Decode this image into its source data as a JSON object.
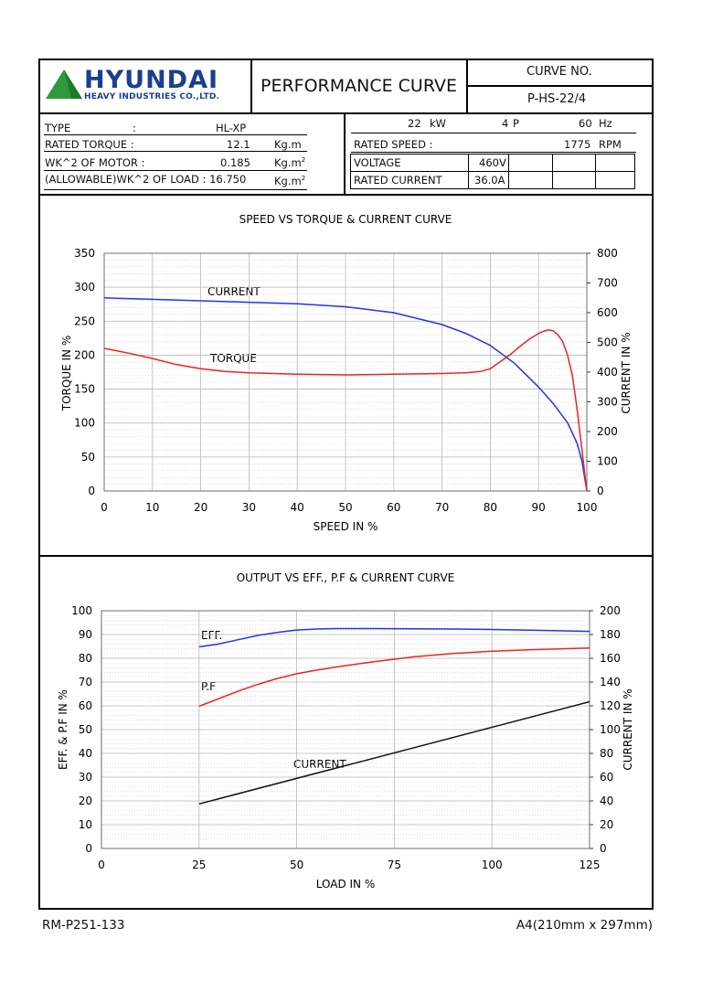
{
  "header": {
    "company_name": "HYUNDAI",
    "company_sub": "HEAVY INDUSTRIES CO.,LTD.",
    "doc_title": "PERFORMANCE CURVE",
    "curve_no_label": "CURVE NO.",
    "curve_no": "P-HS-22/4"
  },
  "specs": {
    "type_label": "TYPE",
    "type_colon": ":",
    "type_value": "HL-XP",
    "rated_torque_label": "RATED TORQUE :",
    "rated_torque_value": "12.1",
    "rated_torque_unit": "Kg.m",
    "wk2_motor_label": "WK^2 OF MOTOR :",
    "wk2_motor_value": "0.185",
    "wk2_motor_unit": "Kg.m",
    "wk2_load_label": "(ALLOWABLE)WK^2 OF LOAD : 16.750",
    "wk2_load_unit": "Kg.m",
    "unit_sup": "2",
    "power_value": "22",
    "power_unit": "kW",
    "poles_value": "4",
    "poles_unit": "P",
    "freq_value": "60",
    "freq_unit": "Hz",
    "rated_speed_label": "RATED SPEED :",
    "rated_speed_value": "1775",
    "rated_speed_unit": "RPM",
    "voltage_label": "VOLTAGE",
    "voltage_value": "460V",
    "rated_current_label": "RATED CURRENT",
    "rated_current_value": "36.0A"
  },
  "chart_data": [
    {
      "type": "line",
      "title": "SPEED VS TORQUE & CURRENT CURVE",
      "xlabel": "SPEED IN %",
      "ylabel": "TORQUE IN %",
      "y2label": "CURRENT IN %",
      "xlim": [
        0,
        100
      ],
      "ylim": [
        0,
        350
      ],
      "y2lim": [
        0,
        800
      ],
      "xticks": [
        "0",
        "10",
        "20",
        "30",
        "40",
        "50",
        "60",
        "70",
        "80",
        "90",
        "100"
      ],
      "yticks": [
        "0",
        "50",
        "100",
        "150",
        "200",
        "250",
        "300",
        "350"
      ],
      "y2ticks": [
        "0",
        "100",
        "200",
        "300",
        "400",
        "500",
        "600",
        "700",
        "800"
      ],
      "grid": true,
      "series": [
        {
          "name": "CURRENT",
          "axis": "right",
          "color": "#2233ee",
          "x": [
            0,
            10,
            20,
            30,
            40,
            50,
            60,
            65,
            70,
            75,
            80,
            85,
            90,
            93,
            96,
            98,
            99,
            100
          ],
          "y": [
            650,
            645,
            640,
            635,
            630,
            620,
            600,
            580,
            560,
            530,
            490,
            430,
            350,
            295,
            230,
            160,
            100,
            0
          ]
        },
        {
          "name": "TORQUE",
          "axis": "left",
          "color": "#ee2222",
          "x": [
            0,
            5,
            10,
            15,
            20,
            25,
            30,
            40,
            50,
            60,
            70,
            75,
            78,
            80,
            82,
            84,
            86,
            88,
            90,
            91,
            92,
            93,
            94,
            95,
            96,
            97,
            98,
            99,
            100
          ],
          "y": [
            210,
            203,
            195,
            186,
            180,
            176,
            174,
            172,
            171,
            172,
            173,
            174,
            176,
            180,
            190,
            200,
            212,
            223,
            232,
            235,
            237,
            236,
            230,
            220,
            200,
            170,
            120,
            60,
            0
          ]
        }
      ]
    },
    {
      "type": "line",
      "title": "OUTPUT VS EFF., P.F & CURRENT CURVE",
      "xlabel": "LOAD IN %",
      "ylabel": "EFF. & P.F IN %",
      "y2label": "CURRENT IN %",
      "xlim": [
        0,
        125
      ],
      "ylim": [
        0,
        100
      ],
      "y2lim": [
        0,
        200
      ],
      "xticks": [
        "0",
        "25",
        "50",
        "75",
        "100",
        "125"
      ],
      "yticks": [
        "0",
        "10",
        "20",
        "30",
        "40",
        "50",
        "60",
        "70",
        "80",
        "90",
        "100"
      ],
      "y2ticks": [
        "0",
        "20",
        "40",
        "60",
        "80",
        "100",
        "120",
        "140",
        "160",
        "180",
        "200"
      ],
      "grid": true,
      "series": [
        {
          "name": "EFF.",
          "axis": "left",
          "color": "#2233ee",
          "x": [
            25,
            30,
            35,
            40,
            45,
            50,
            55,
            60,
            70,
            80,
            90,
            100,
            110,
            125
          ],
          "y": [
            84.8,
            86.0,
            87.8,
            89.6,
            90.9,
            91.9,
            92.3,
            92.5,
            92.5,
            92.4,
            92.3,
            92.1,
            91.8,
            91.3
          ]
        },
        {
          "name": "P.F",
          "axis": "left",
          "color": "#ee2222",
          "x": [
            25,
            30,
            35,
            40,
            45,
            50,
            55,
            60,
            70,
            80,
            90,
            100,
            110,
            125
          ],
          "y": [
            59.8,
            63.0,
            66.2,
            69.0,
            71.5,
            73.5,
            75.0,
            76.3,
            78.6,
            80.6,
            82.0,
            83.0,
            83.6,
            84.3
          ]
        },
        {
          "name": "CURRENT",
          "axis": "right",
          "color": "#111111",
          "x": [
            25,
            125
          ],
          "y": [
            37.5,
            123.5
          ]
        }
      ]
    }
  ],
  "footer": {
    "left": "RM-P251-133",
    "right": "A4(210mm x 297mm)"
  }
}
